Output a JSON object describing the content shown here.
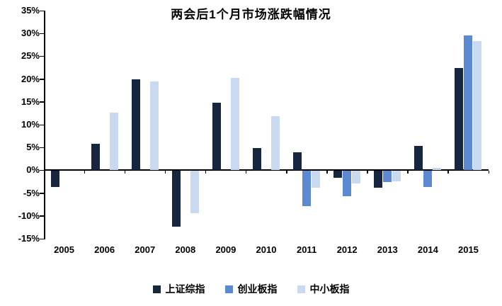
{
  "chart_data": {
    "type": "bar",
    "title": "两会后1个月市场涨跌幅情况",
    "categories": [
      "2005",
      "2006",
      "2007",
      "2008",
      "2009",
      "2010",
      "2011",
      "2012",
      "2013",
      "2014",
      "2015"
    ],
    "series": [
      {
        "name": "上证综指",
        "color": "#17263f",
        "values": [
          -3.5,
          5.8,
          20.0,
          -12.2,
          14.8,
          4.9,
          3.9,
          -1.5,
          -3.7,
          5.4,
          22.5
        ]
      },
      {
        "name": "创业板指",
        "color": "#5b8ad2",
        "values": [
          null,
          null,
          null,
          null,
          null,
          null,
          -7.7,
          -5.5,
          -2.5,
          -3.5,
          29.5
        ]
      },
      {
        "name": "中小板指",
        "color": "#c9daf0",
        "values": [
          null,
          12.7,
          19.4,
          -9.2,
          20.3,
          11.8,
          -3.7,
          -2.7,
          -2.3,
          0.5,
          28.4
        ]
      }
    ],
    "ylim": [
      -15,
      35
    ],
    "ytick_step": 5,
    "ytick_label_suffix": "%",
    "xlabel": "",
    "ylabel": "",
    "grid": false,
    "legend_position": "bottom",
    "axis_color": "#000000"
  }
}
